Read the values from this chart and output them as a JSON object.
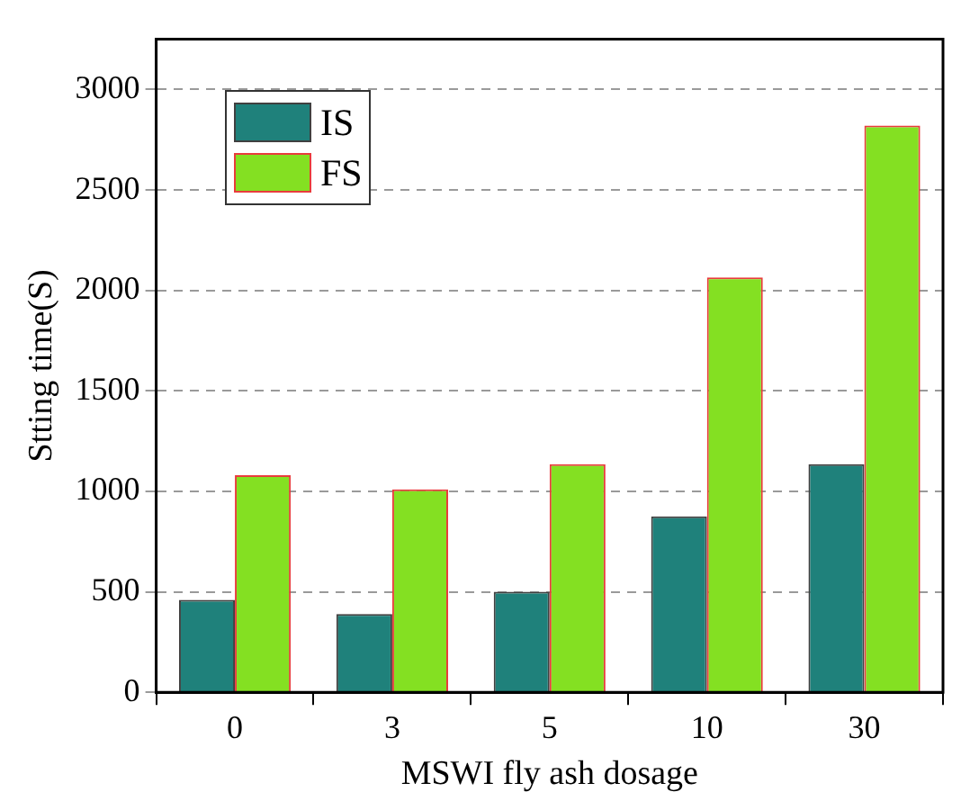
{
  "chart_data": {
    "type": "bar",
    "xlabel": "MSWI fly ash dosage",
    "ylabel": "Stting time(S)",
    "categories": [
      "0",
      "3",
      "5",
      "10",
      "30"
    ],
    "series": [
      {
        "name": "IS",
        "color": "#1f817b",
        "values": [
          460,
          390,
          500,
          875,
          1135
        ]
      },
      {
        "name": "FS",
        "color": "#84e022",
        "values": [
          1080,
          1010,
          1135,
          2065,
          2820
        ]
      }
    ],
    "ylim": [
      0,
      3250
    ],
    "yticks": [
      0,
      500,
      1000,
      1500,
      2000,
      2500,
      3000
    ],
    "grid": "y",
    "legend": "top left"
  }
}
